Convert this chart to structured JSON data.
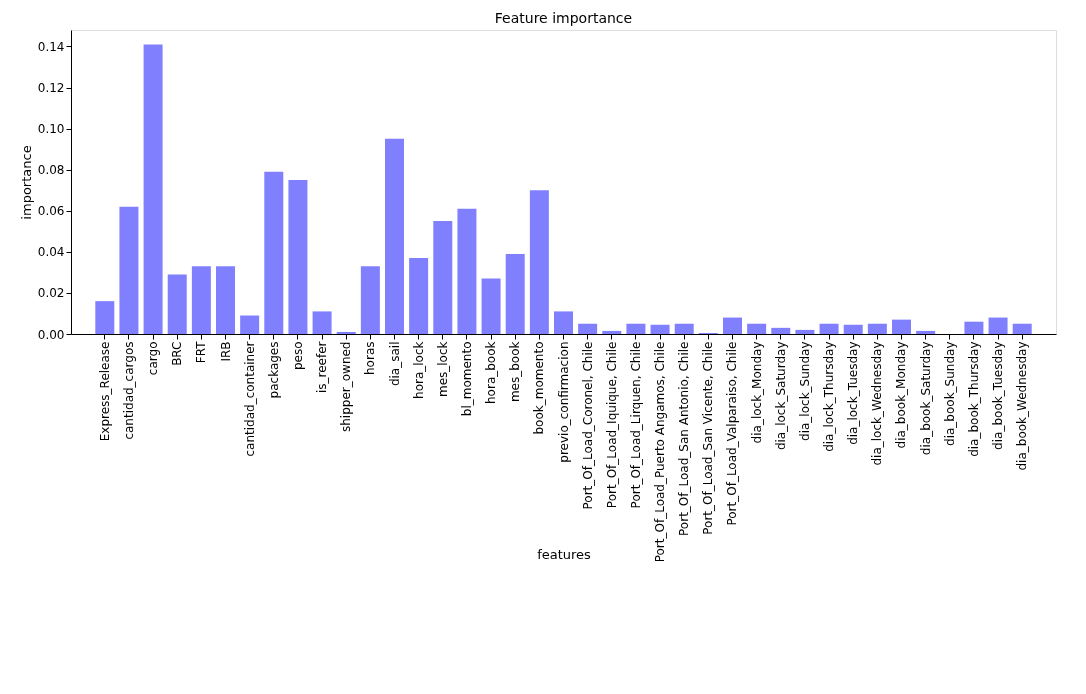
{
  "chart_data": {
    "type": "bar",
    "title": "Feature importance",
    "xlabel": "features",
    "ylabel": "importance",
    "grid": false,
    "legend": false,
    "categories": [
      "Express_Release",
      "cantidad_cargos",
      "cargo",
      "BRC",
      "FRT",
      "IRB",
      "cantidad_container",
      "packages",
      "peso",
      "is_reefer",
      "shipper_owned",
      "horas",
      "dia_sail",
      "hora_lock",
      "mes_lock",
      "bl_momento",
      "hora_book",
      "mes_book",
      "book_momento",
      "previo_confirmacion",
      "Port_Of_Load_Coronel, Chile",
      "Port_Of_Load_Iquique, Chile",
      "Port_Of_Load_Lirquen, Chile",
      "Port_Of_Load_Puerto Angamos, Chile",
      "Port_Of_Load_San Antonio, Chile",
      "Port_Of_Load_San Vicente, Chile",
      "Port_Of_Load_Valparaiso, Chile",
      "dia_lock_Monday",
      "dia_lock_Saturday",
      "dia_lock_Sunday",
      "dia_lock_Thursday",
      "dia_lock_Tuesday",
      "dia_lock_Wednesday",
      "dia_book_Monday",
      "dia_book_Saturday",
      "dia_book_Sunday",
      "dia_book_Thursday",
      "dia_book_Tuesday",
      "dia_book_Wednesday"
    ],
    "series": [
      {
        "color": "#8080ff",
        "values": [
          0.016,
          0.062,
          0.141,
          0.029,
          0.033,
          0.033,
          0.009,
          0.079,
          0.075,
          0.011,
          0.001,
          0.033,
          0.095,
          0.037,
          0.055,
          0.061,
          0.027,
          0.039,
          0.07,
          0.011,
          0.005,
          0.0015,
          0.005,
          0.0045,
          0.005,
          0.0005,
          0.008,
          0.005,
          0.003,
          0.002,
          0.005,
          0.0045,
          0.005,
          0.007,
          0.0015,
          0,
          0.006,
          0.008,
          0.005
        ]
      }
    ],
    "ylim": [
      0,
      0.148
    ],
    "yticks": [
      {
        "value": 0,
        "label": "0.00"
      },
      {
        "value": 0.02,
        "label": "0.02"
      },
      {
        "value": 0.04,
        "label": "0.04"
      },
      {
        "value": 0.06,
        "label": "0.06"
      },
      {
        "value": 0.08,
        "label": "0.08"
      },
      {
        "value": 0.1,
        "label": "0.10"
      },
      {
        "value": 0.12,
        "label": "0.12"
      },
      {
        "value": 0.14,
        "label": "0.14"
      }
    ]
  }
}
